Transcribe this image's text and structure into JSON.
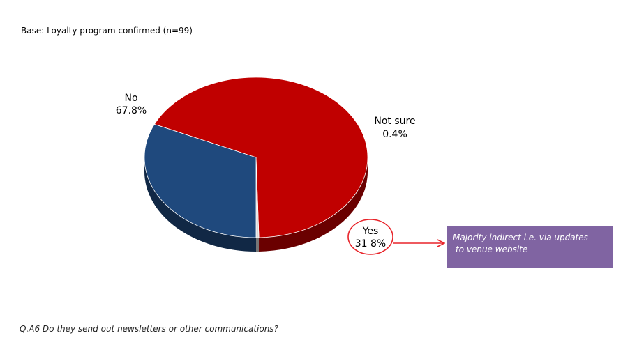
{
  "base_note": "Base: Loyalty program confirmed (n=99)",
  "question": "Q.A6 Do they send out newsletters or other communications?",
  "callout": {
    "line1": "Majority indirect i.e. via updates",
    "line2": "to venue website",
    "color": "#8064a2"
  },
  "chart_data": {
    "type": "pie",
    "title": "",
    "slices": [
      {
        "label": "No",
        "value": 67.8,
        "value_label": "67.8%",
        "color": "#c00000"
      },
      {
        "label": "Not sure",
        "value": 0.4,
        "value_label": "0.4%",
        "color": "#d9d9d9"
      },
      {
        "label": "Yes",
        "value": 31.8,
        "value_label": "31 8%",
        "color": "#1f497d"
      }
    ],
    "highlight": "Yes"
  }
}
